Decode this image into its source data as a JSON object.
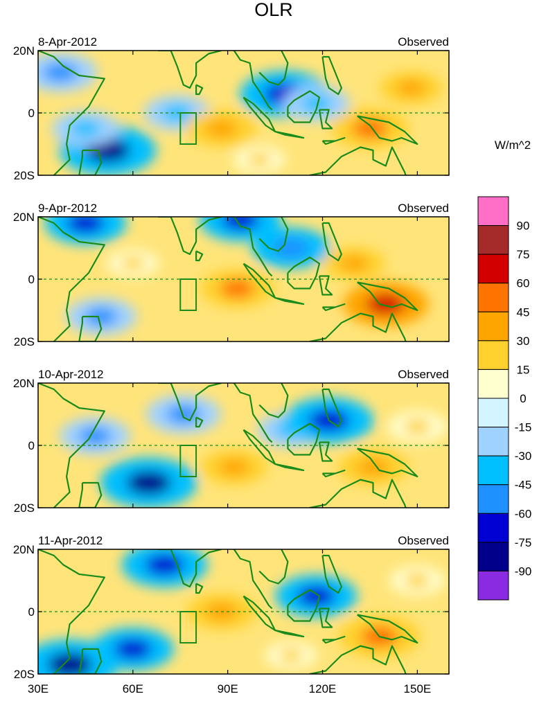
{
  "chart_data": {
    "type": "heatmap",
    "title": "OLR",
    "units_label": "W/m^2",
    "x_tick_labels": [
      "30E",
      "60E",
      "90E",
      "120E",
      "150E"
    ],
    "x_tick_values": [
      30,
      60,
      90,
      120,
      150
    ],
    "xlim": [
      30,
      160
    ],
    "y_tick_labels": [
      "20N",
      "0",
      "20S"
    ],
    "y_tick_values": [
      20,
      0,
      -20
    ],
    "ylim": [
      -20,
      20
    ],
    "colorbar": {
      "labels": [
        "90",
        "75",
        "60",
        "45",
        "30",
        "15",
        "0",
        "-15",
        "-30",
        "-45",
        "-60",
        "-75",
        "-90"
      ],
      "colors": [
        "#ff6ec7",
        "#a52a2a",
        "#d20000",
        "#ff7300",
        "#ffa500",
        "#ffd12e",
        "#ffffd0",
        "#d2f5ff",
        "#a0d2ff",
        "#00bfff",
        "#1e90ff",
        "#0000d2",
        "#00008b",
        "#8a2be2"
      ]
    },
    "panels": [
      {
        "date": "8-Apr-2012",
        "label": "Observed",
        "anomalies": [
          {
            "lon": 52,
            "lat": -12,
            "value": -80
          },
          {
            "lon": 45,
            "lat": -5,
            "value": -40
          },
          {
            "lon": 37,
            "lat": 13,
            "value": -50
          },
          {
            "lon": 74,
            "lat": 0,
            "value": -40
          },
          {
            "lon": 108,
            "lat": 6,
            "value": -70
          },
          {
            "lon": 118,
            "lat": 3,
            "value": -40
          },
          {
            "lon": 88,
            "lat": -5,
            "value": 45
          },
          {
            "lon": 135,
            "lat": -5,
            "value": 55
          },
          {
            "lon": 148,
            "lat": 8,
            "value": 35
          },
          {
            "lon": 100,
            "lat": -15,
            "value": 20
          }
        ]
      },
      {
        "date": "9-Apr-2012",
        "label": "Observed",
        "anomalies": [
          {
            "lon": 45,
            "lat": 18,
            "value": -60
          },
          {
            "lon": 50,
            "lat": -12,
            "value": -45
          },
          {
            "lon": 110,
            "lat": 10,
            "value": -55
          },
          {
            "lon": 94,
            "lat": 19,
            "value": -60
          },
          {
            "lon": 93,
            "lat": -3,
            "value": 50
          },
          {
            "lon": 140,
            "lat": -8,
            "value": 65
          },
          {
            "lon": 130,
            "lat": 5,
            "value": 35
          },
          {
            "lon": 60,
            "lat": 5,
            "value": 20
          }
        ]
      },
      {
        "date": "10-Apr-2012",
        "label": "Observed",
        "anomalies": [
          {
            "lon": 65,
            "lat": -12,
            "value": -80
          },
          {
            "lon": 48,
            "lat": 3,
            "value": -45
          },
          {
            "lon": 76,
            "lat": 10,
            "value": -50
          },
          {
            "lon": 110,
            "lat": 5,
            "value": -40
          },
          {
            "lon": 122,
            "lat": 8,
            "value": -70
          },
          {
            "lon": 92,
            "lat": -7,
            "value": 40
          },
          {
            "lon": 136,
            "lat": -7,
            "value": 45
          },
          {
            "lon": 150,
            "lat": 6,
            "value": 30
          }
        ]
      },
      {
        "date": "11-Apr-2012",
        "label": "Observed",
        "anomalies": [
          {
            "lon": 40,
            "lat": -17,
            "value": -80
          },
          {
            "lon": 60,
            "lat": -12,
            "value": -60
          },
          {
            "lon": 70,
            "lat": 15,
            "value": -65
          },
          {
            "lon": 118,
            "lat": 5,
            "value": -60
          },
          {
            "lon": 88,
            "lat": 0,
            "value": 45
          },
          {
            "lon": 138,
            "lat": -8,
            "value": 60
          },
          {
            "lon": 150,
            "lat": 10,
            "value": 25
          },
          {
            "lon": 110,
            "lat": -14,
            "value": 20
          }
        ]
      }
    ]
  }
}
